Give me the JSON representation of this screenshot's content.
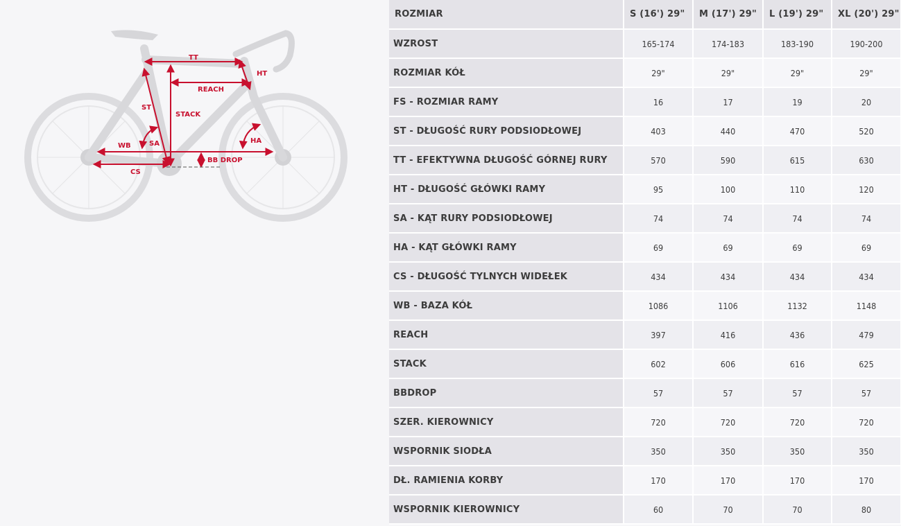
{
  "diagram": {
    "labels": {
      "tt": "TT",
      "ht": "HT",
      "reach": "REACH",
      "st": "ST",
      "stack": "STACK",
      "wb": "WB",
      "sa": "SA",
      "ha": "HA",
      "cs": "CS",
      "bbdrop": "BB DROP"
    },
    "accent_color": "#c8102e"
  },
  "table": {
    "header": [
      "ROZMIAR",
      "S (16') 29\"",
      "M (17') 29\"",
      "L (19') 29\"",
      "XL (20') 29\""
    ],
    "rows": [
      {
        "label": "WZROST",
        "values": [
          "165-174",
          "174-183",
          "183-190",
          "190-200"
        ]
      },
      {
        "label": "ROZMIAR KÓŁ",
        "values": [
          "29\"",
          "29\"",
          "29\"",
          "29\""
        ]
      },
      {
        "label": "FS - ROZMIAR RAMY",
        "values": [
          "16",
          "17",
          "19",
          "20"
        ]
      },
      {
        "label": "ST - DŁUGOŚĆ RURY PODSIODŁOWEJ",
        "values": [
          "403",
          "440",
          "470",
          "520"
        ]
      },
      {
        "label": "TT - EFEKTYWNA DŁUGOŚĆ GÓRNEJ RURY",
        "values": [
          "570",
          "590",
          "615",
          "630"
        ]
      },
      {
        "label": "HT - DŁUGOŚĆ GŁÓWKI RAMY",
        "values": [
          "95",
          "100",
          "110",
          "120"
        ]
      },
      {
        "label": "SA - KĄT RURY PODSIODŁOWEJ",
        "values": [
          "74",
          "74",
          "74",
          "74"
        ]
      },
      {
        "label": "HA - KĄT GŁÓWKI RAMY",
        "values": [
          "69",
          "69",
          "69",
          "69"
        ]
      },
      {
        "label": "CS - DŁUGOŚĆ TYLNYCH WIDEŁEK",
        "values": [
          "434",
          "434",
          "434",
          "434"
        ]
      },
      {
        "label": "WB - BAZA KÓŁ",
        "values": [
          "1086",
          "1106",
          "1132",
          "1148"
        ]
      },
      {
        "label": "REACH",
        "values": [
          "397",
          "416",
          "436",
          "479"
        ]
      },
      {
        "label": "STACK",
        "values": [
          "602",
          "606",
          "616",
          "625"
        ]
      },
      {
        "label": "BBDROP",
        "values": [
          "57",
          "57",
          "57",
          "57"
        ]
      },
      {
        "label": "SZER. KIEROWNICY",
        "values": [
          "720",
          "720",
          "720",
          "720"
        ]
      },
      {
        "label": "WSPORNIK SIODŁA",
        "values": [
          "350",
          "350",
          "350",
          "350"
        ]
      },
      {
        "label": "DŁ. RAMIENIA KORBY",
        "values": [
          "170",
          "170",
          "170",
          "170"
        ]
      },
      {
        "label": "WSPORNIK KIEROWNICY",
        "values": [
          "60",
          "70",
          "70",
          "80"
        ]
      }
    ]
  }
}
